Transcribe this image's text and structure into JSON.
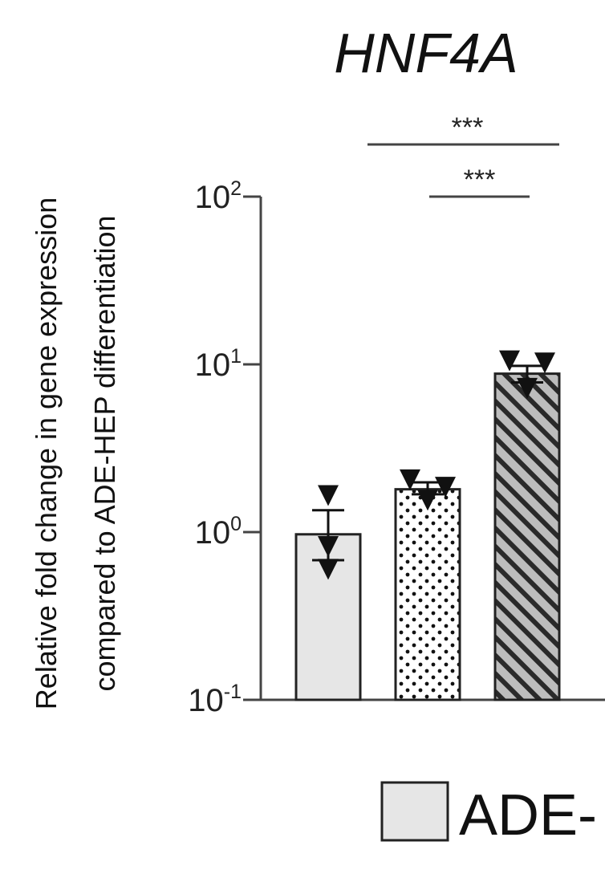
{
  "chart_data": {
    "type": "bar",
    "title": "HNF4A",
    "ylabel_lines": [
      "Relative fold change in gene expression",
      "compared to ADE-HEP differentiation"
    ],
    "yscale": "log",
    "ylim": [
      0.1,
      100
    ],
    "y_ticks": [
      {
        "base": "10",
        "exp": "-1",
        "value": 0.1
      },
      {
        "base": "10",
        "exp": "0",
        "value": 1
      },
      {
        "base": "10",
        "exp": "1",
        "value": 10
      },
      {
        "base": "10",
        "exp": "2",
        "value": 100
      }
    ],
    "bars": [
      {
        "value": 0.97,
        "err_low": 0.68,
        "err_high": 1.35,
        "pattern": "solid",
        "fill": "#e6e6e6",
        "points": [
          1.65,
          0.82,
          0.6
        ]
      },
      {
        "value": 1.8,
        "err_low": 1.68,
        "err_high": 1.98,
        "pattern": "dots",
        "fill": "#ffffff",
        "points": [
          2.05,
          1.55,
          1.85
        ]
      },
      {
        "value": 8.8,
        "err_low": 7.8,
        "err_high": 9.8,
        "pattern": "stripes",
        "fill": "#bdbdbd",
        "points": [
          10.5,
          7.2,
          10.2
        ]
      }
    ],
    "significance": [
      {
        "label": "***",
        "from_bar": 0,
        "to_bar": 2
      },
      {
        "label": "***",
        "from_bar": 1,
        "to_bar": 2
      }
    ],
    "legend": [
      {
        "label": "ADE-",
        "fill": "#e6e6e6"
      }
    ],
    "grid": false
  }
}
